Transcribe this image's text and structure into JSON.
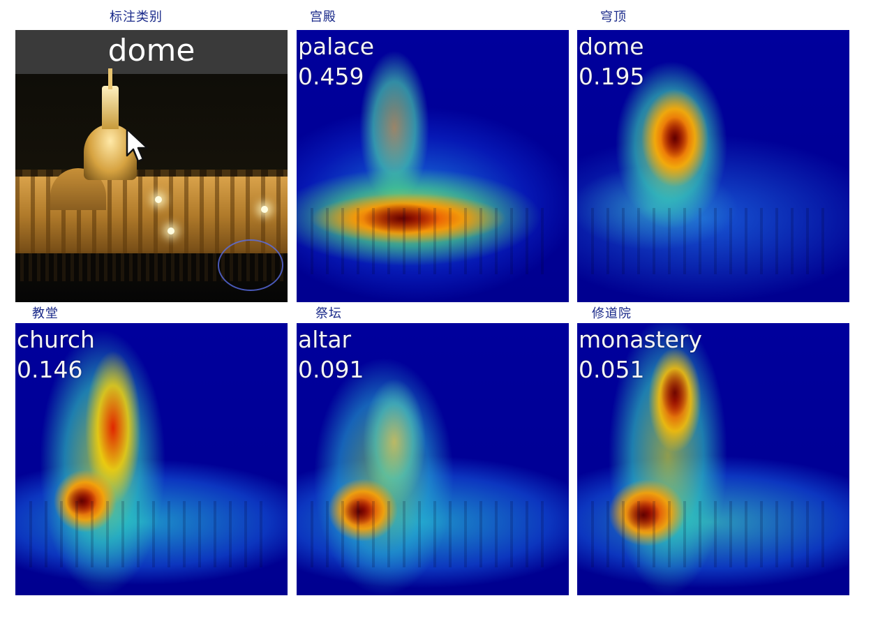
{
  "captions": {
    "ground_truth": "标注类别",
    "palace": "宫殿",
    "dome": "穹顶",
    "church": "教堂",
    "altar": "祭坛",
    "monastery": "修道院"
  },
  "ground_truth_panel": {
    "label": "dome"
  },
  "predictions": [
    {
      "label": "palace",
      "score": "0.459"
    },
    {
      "label": "dome",
      "score": "0.195"
    },
    {
      "label": "church",
      "score": "0.146"
    },
    {
      "label": "altar",
      "score": "0.091"
    },
    {
      "label": "monastery",
      "score": "0.051"
    }
  ],
  "icons": {
    "cursor": "mouse-pointer-icon"
  }
}
